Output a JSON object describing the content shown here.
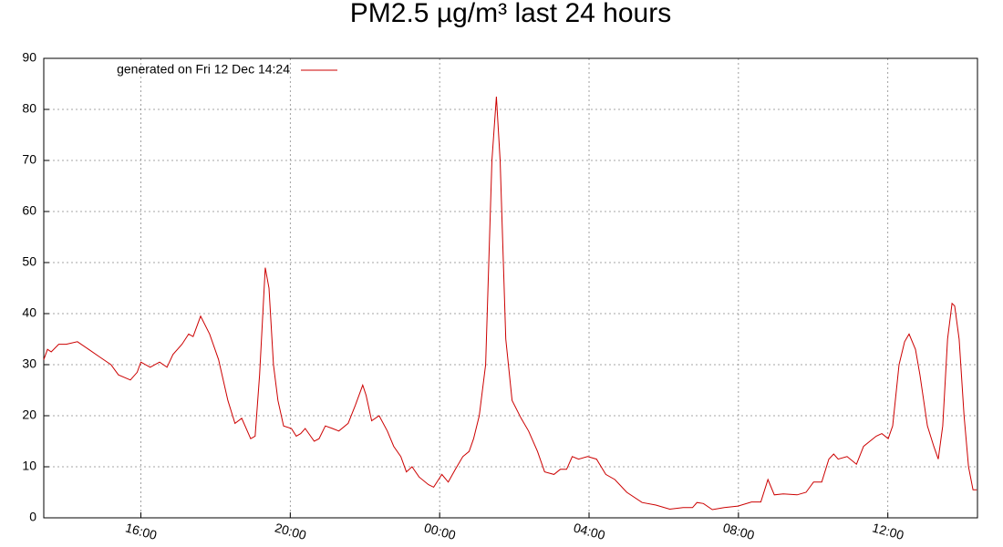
{
  "chart_data": {
    "type": "line",
    "title": "PM2.5 µg/m³ last 24 hours",
    "x": [
      13.4,
      13.5,
      13.6,
      13.8,
      14.0,
      14.3,
      14.6,
      14.9,
      15.2,
      15.4,
      15.72,
      15.9,
      16.0,
      16.25,
      16.5,
      16.7,
      16.86,
      17.1,
      17.28,
      17.4,
      17.6,
      17.84,
      18.08,
      18.33,
      18.52,
      18.7,
      18.94,
      19.06,
      19.18,
      19.33,
      19.43,
      19.55,
      19.67,
      19.82,
      20.03,
      20.16,
      20.28,
      20.4,
      20.64,
      20.77,
      20.94,
      21.13,
      21.3,
      21.55,
      21.74,
      21.94,
      22.03,
      22.18,
      22.38,
      22.6,
      22.77,
      22.96,
      23.11,
      23.26,
      23.45,
      23.7,
      23.84,
      24.06,
      24.23,
      24.42,
      24.62,
      24.79,
      24.91,
      25.06,
      25.23,
      25.4,
      25.52,
      25.62,
      25.77,
      25.94,
      26.18,
      26.38,
      26.62,
      26.81,
      27.06,
      27.23,
      27.4,
      27.55,
      27.72,
      27.96,
      28.2,
      28.45,
      28.69,
      29.01,
      29.42,
      29.79,
      30.16,
      30.52,
      30.77,
      30.89,
      31.06,
      31.3,
      31.62,
      31.99,
      32.35,
      32.6,
      32.79,
      32.96,
      33.2,
      33.57,
      33.81,
      34.01,
      34.23,
      34.42,
      34.55,
      34.67,
      34.91,
      35.16,
      35.35,
      35.52,
      35.69,
      35.84,
      36.01,
      36.13,
      36.3,
      36.45,
      36.57,
      36.74,
      36.86,
      37.06,
      37.23,
      37.35,
      37.47,
      37.6,
      37.72,
      37.79,
      37.91,
      38.04,
      38.16,
      38.28,
      38.38
    ],
    "series": [
      {
        "name": "generated on Fri 12 Dec 14:24",
        "color": "#cc0000",
        "values": [
          31,
          33,
          32.5,
          34,
          34,
          34.5,
          33,
          31.5,
          30,
          28,
          27,
          28.5,
          30.5,
          29.5,
          30.5,
          29.5,
          32,
          34,
          36,
          35.5,
          39.5,
          36,
          31,
          23,
          18.5,
          19.5,
          15.5,
          16,
          28,
          49,
          45,
          30,
          23,
          18,
          17.5,
          16,
          16.5,
          17.5,
          15,
          15.5,
          18,
          17.5,
          17,
          18.5,
          22,
          26,
          24,
          19,
          20,
          17,
          14,
          12,
          9,
          10,
          8,
          6.5,
          6,
          8.5,
          7,
          9.5,
          12,
          13,
          15.5,
          20,
          30,
          70,
          82.5,
          70,
          35,
          23,
          19.5,
          17,
          13,
          9,
          8.5,
          9.5,
          9.5,
          12,
          11.5,
          12,
          11.5,
          8.5,
          7.5,
          5,
          3,
          2.5,
          1.7,
          2,
          2,
          3,
          2.8,
          1.6,
          2,
          2.3,
          3.1,
          3.1,
          7.5,
          4.5,
          4.7,
          4.5,
          5,
          7,
          7,
          11.5,
          12.5,
          11.5,
          12,
          10.5,
          14,
          15,
          16,
          16.5,
          15.5,
          18,
          30,
          34.5,
          36,
          33,
          28,
          18,
          14,
          11.5,
          18,
          35,
          42,
          41.5,
          35,
          20,
          10,
          5.5,
          5.5
        ]
      }
    ],
    "xlim": [
      13.4,
      38.4
    ],
    "ylim": [
      0,
      90
    ],
    "xticks": [
      {
        "value": 16,
        "label": "16:00"
      },
      {
        "value": 20,
        "label": "20:00"
      },
      {
        "value": 24,
        "label": "00:00"
      },
      {
        "value": 28,
        "label": "04:00"
      },
      {
        "value": 32,
        "label": "08:00"
      },
      {
        "value": 36,
        "label": "12:00"
      }
    ],
    "yticks": [
      0,
      10,
      20,
      30,
      40,
      50,
      60,
      70,
      80,
      90
    ],
    "grid": true,
    "legend": "top-left"
  }
}
